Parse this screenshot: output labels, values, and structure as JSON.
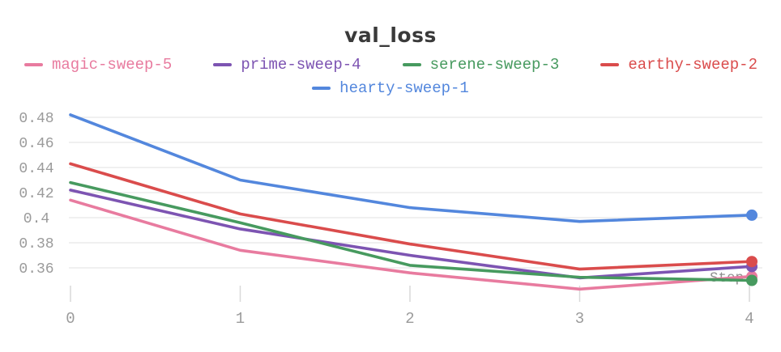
{
  "chart_data": {
    "type": "line",
    "title": "val_loss",
    "xlabel": "Step",
    "x": [
      0,
      1,
      2,
      3,
      4
    ],
    "xticks": [
      "0",
      "1",
      "2",
      "3",
      "4"
    ],
    "yticks": [
      0.36,
      0.38,
      0.4,
      0.42,
      0.44,
      0.46,
      0.48
    ],
    "ylim": [
      0.345,
      0.487
    ],
    "xlim": [
      0,
      4
    ],
    "grid": "horizontal",
    "legend_position": "top",
    "end_markers": true,
    "series": [
      {
        "name": "magic-sweep-5",
        "color": "#E87B9F",
        "values": [
          0.414,
          0.374,
          0.356,
          0.343,
          0.353
        ]
      },
      {
        "name": "prime-sweep-4",
        "color": "#7D54B2",
        "values": [
          0.422,
          0.391,
          0.37,
          0.352,
          0.361
        ]
      },
      {
        "name": "serene-sweep-3",
        "color": "#479A5F",
        "values": [
          0.428,
          0.396,
          0.362,
          0.3525,
          0.35
        ]
      },
      {
        "name": "earthy-sweep-2",
        "color": "#DA4C4C",
        "values": [
          0.443,
          0.403,
          0.379,
          0.359,
          0.365
        ]
      },
      {
        "name": "hearty-sweep-1",
        "color": "#5387DD",
        "values": [
          0.482,
          0.43,
          0.408,
          0.397,
          0.402
        ]
      }
    ]
  },
  "colors": {
    "title_text": "#3a3a3a",
    "axis_text": "#9b9b9b",
    "step_label_text": "#8f8f8f",
    "gridline": "#e7e7e7",
    "tick": "#d9d9d9",
    "background": "#ffffff"
  }
}
